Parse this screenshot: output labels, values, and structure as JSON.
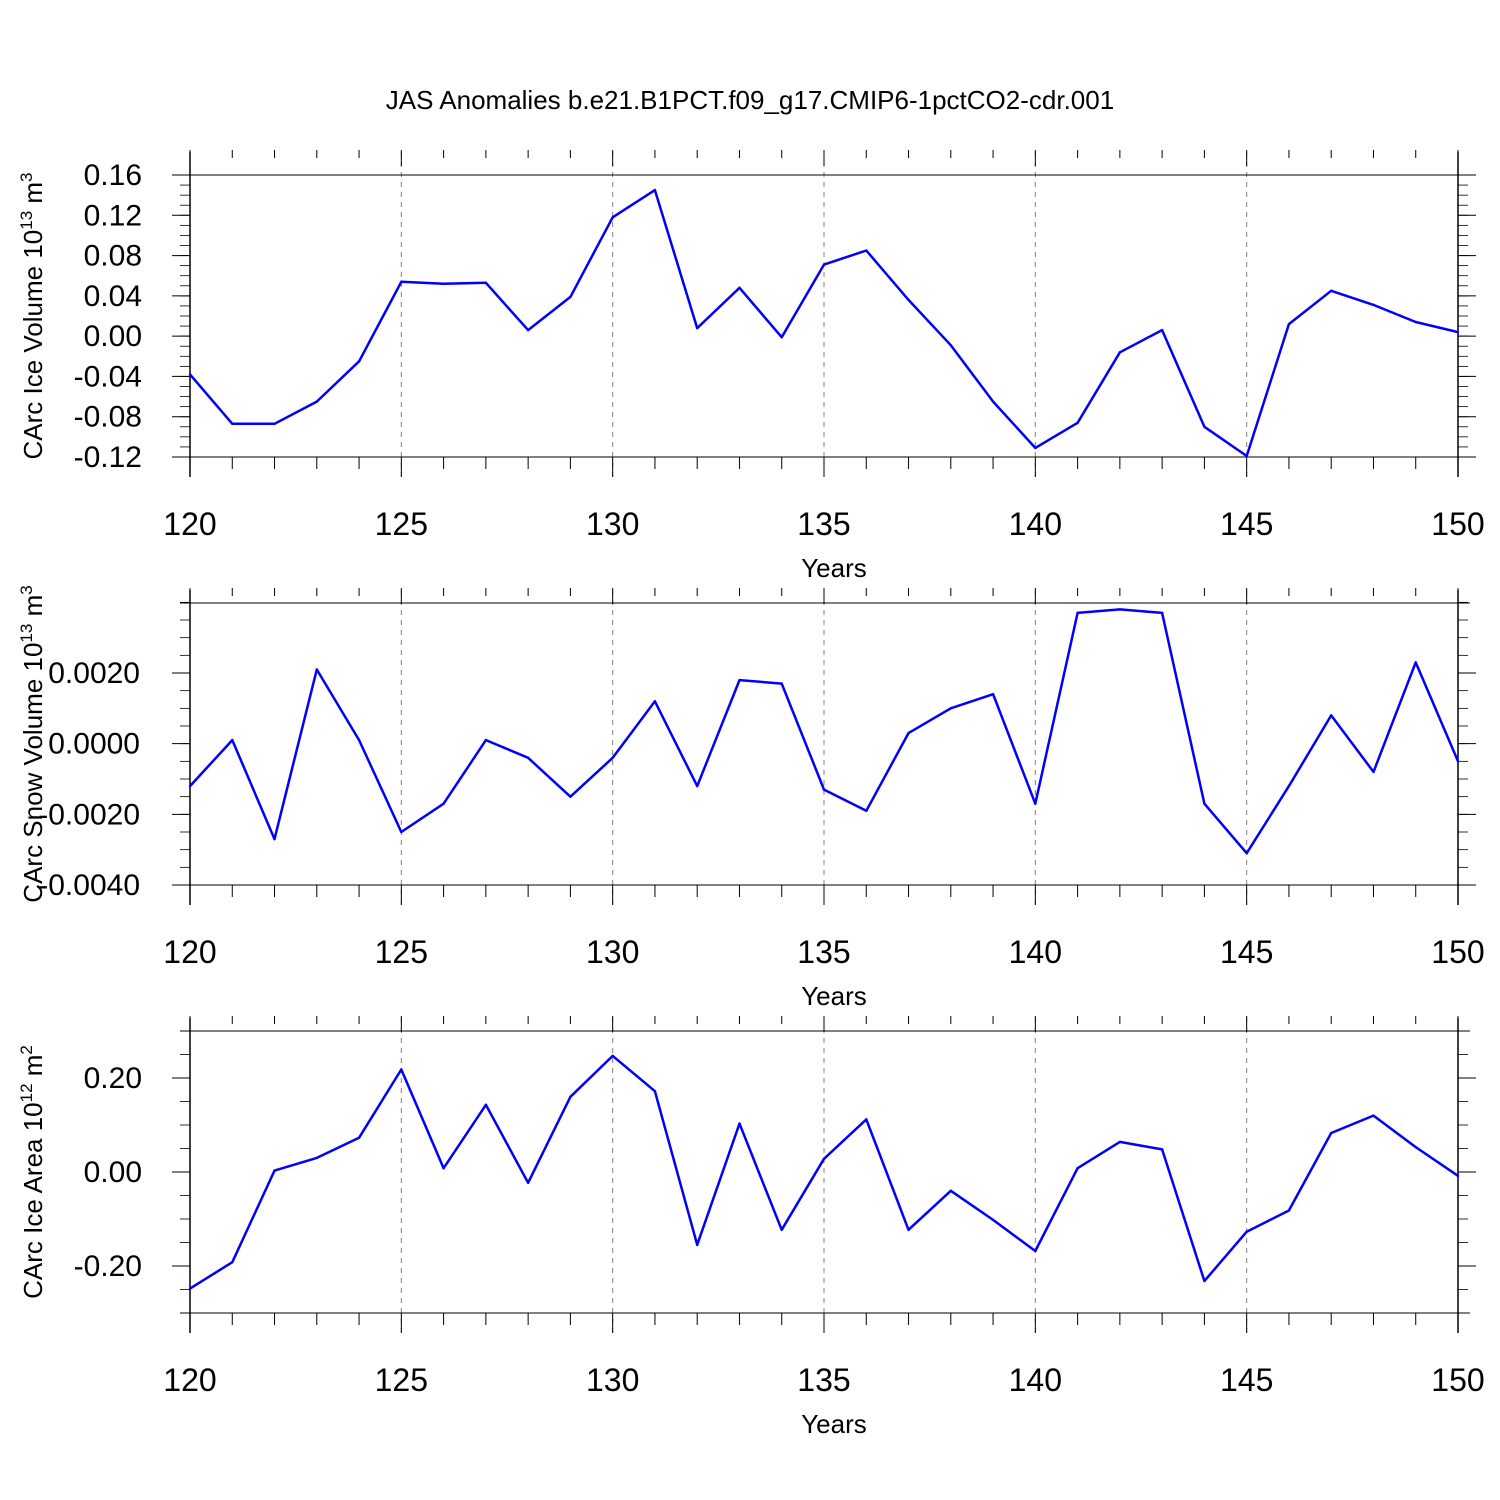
{
  "title": "JAS Anomalies b.e21.B1PCT.f09_g17.CMIP6-1pctCO2-cdr.001",
  "colors": {
    "line": "#0000ff",
    "axis": "#000000",
    "grid": "#808080"
  },
  "chart_data": [
    {
      "type": "line",
      "xlabel": "Years",
      "ylabel": "CArc Ice Volume 10",
      "ylabel_sup": "13",
      "ylabel_unit": " m",
      "ylabel_unit_sup": "3",
      "xlim": [
        120,
        150
      ],
      "ylim": [
        -0.12,
        0.18
      ],
      "xticks": [
        120,
        125,
        130,
        135,
        140,
        145,
        150
      ],
      "xtick_labels": [
        "120",
        "125",
        "130",
        "135",
        "140",
        "145",
        "150"
      ],
      "yticks": [
        -0.12,
        -0.08,
        -0.04,
        0.0,
        0.04,
        0.08,
        0.12,
        0.16
      ],
      "ytick_labels": [
        "-0.12",
        "-0.08",
        "-0.04",
        "0.00",
        "0.04",
        "0.08",
        "0.12",
        "0.16"
      ],
      "x_gridlines": [
        125,
        130,
        135,
        140,
        145
      ],
      "x": [
        120,
        121,
        122,
        123,
        124,
        125,
        126,
        127,
        128,
        129,
        130,
        131,
        132,
        133,
        134,
        135,
        136,
        137,
        138,
        139,
        140,
        141,
        142,
        143,
        144,
        145,
        146,
        147,
        148,
        149,
        150
      ],
      "y": [
        -0.038,
        -0.087,
        -0.087,
        -0.065,
        -0.025,
        0.054,
        0.052,
        0.053,
        0.006,
        0.039,
        0.118,
        0.145,
        0.008,
        0.048,
        -0.001,
        0.071,
        0.085,
        0.036,
        -0.009,
        -0.065,
        -0.111,
        -0.086,
        -0.016,
        0.006,
        -0.09,
        -0.119,
        0.012,
        0.045,
        0.031,
        0.014,
        0.004
      ]
    },
    {
      "type": "line",
      "xlabel": "Years",
      "ylabel": "CArc Snow Volume 10",
      "ylabel_sup": "13",
      "ylabel_unit": " m",
      "ylabel_unit_sup": "3",
      "xlim": [
        120,
        150
      ],
      "ylim": [
        -0.004,
        0.004
      ],
      "xticks": [
        120,
        125,
        130,
        135,
        140,
        145,
        150
      ],
      "xtick_labels": [
        "120",
        "125",
        "130",
        "135",
        "140",
        "145",
        "150"
      ],
      "yticks": [
        -0.004,
        -0.002,
        0.0,
        0.002
      ],
      "ytick_labels": [
        "-0.0040",
        "-0.0020",
        "0.0000",
        "0.0020"
      ],
      "x_gridlines": [
        125,
        130,
        135,
        140,
        145
      ],
      "x": [
        120,
        121,
        122,
        123,
        124,
        125,
        126,
        127,
        128,
        129,
        130,
        131,
        132,
        133,
        134,
        135,
        136,
        137,
        138,
        139,
        140,
        141,
        142,
        143,
        144,
        145,
        146,
        147,
        148,
        149,
        150
      ],
      "y": [
        -0.0012,
        0.0001,
        -0.0027,
        0.0021,
        0.0001,
        -0.0025,
        -0.0017,
        0.0001,
        -0.0004,
        -0.0015,
        -0.0004,
        0.0012,
        -0.0012,
        0.0018,
        0.0017,
        -0.0013,
        -0.0019,
        0.0003,
        0.001,
        0.0014,
        -0.0017,
        0.0037,
        0.0038,
        0.0037,
        -0.0017,
        -0.0031,
        -0.0012,
        0.0008,
        -0.0008,
        0.0023,
        -0.0005
      ]
    },
    {
      "type": "line",
      "xlabel": "Years",
      "ylabel": "CArc Ice Area 10",
      "ylabel_sup": "12",
      "ylabel_unit": " m",
      "ylabel_unit_sup": "2",
      "xlim": [
        120,
        150
      ],
      "ylim": [
        -0.3,
        0.3
      ],
      "xticks": [
        120,
        125,
        130,
        135,
        140,
        145,
        150
      ],
      "xtick_labels": [
        "120",
        "125",
        "130",
        "135",
        "140",
        "145",
        "150"
      ],
      "yticks": [
        -0.2,
        0.0,
        0.2
      ],
      "ytick_labels": [
        "-0.20",
        "0.00",
        "0.20"
      ],
      "x_gridlines": [
        125,
        130,
        135,
        140,
        145
      ],
      "x": [
        120,
        121,
        122,
        123,
        124,
        125,
        126,
        127,
        128,
        129,
        130,
        131,
        132,
        133,
        134,
        135,
        136,
        137,
        138,
        139,
        140,
        141,
        142,
        143,
        144,
        145,
        146,
        147,
        148,
        149,
        150
      ],
      "y": [
        -0.248,
        -0.192,
        0.003,
        0.03,
        0.073,
        0.218,
        0.008,
        0.143,
        -0.023,
        0.16,
        0.247,
        0.172,
        -0.155,
        0.103,
        -0.123,
        0.028,
        0.112,
        -0.123,
        -0.04,
        -0.102,
        -0.168,
        0.008,
        0.064,
        0.048,
        -0.232,
        -0.127,
        -0.082,
        0.083,
        0.12,
        0.053,
        -0.008
      ]
    }
  ]
}
